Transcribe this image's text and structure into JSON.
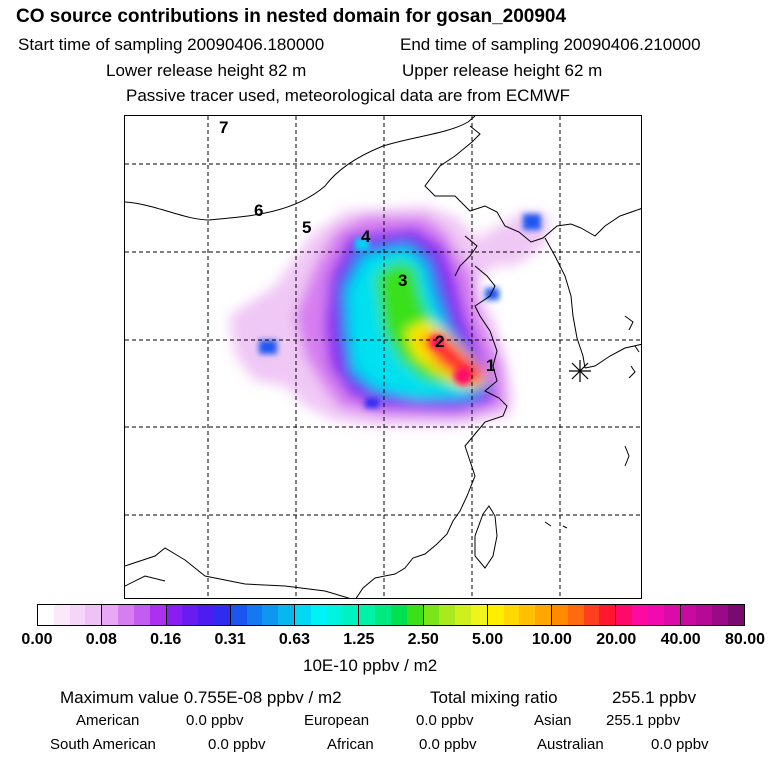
{
  "header": {
    "title": "CO  source contributions in nested domain for gosan_200904",
    "start_label": "Start time of sampling 20090406.180000",
    "end_label": "End time of sampling 20090406.210000",
    "lower_label": "Lower release height   82 m",
    "upper_label": "Upper release height   62 m",
    "tracer_label": "Passive tracer used, meteorological data are from ECMWF"
  },
  "map": {
    "day_labels": [
      "7",
      "6",
      "5",
      "4",
      "3",
      "2",
      "1"
    ],
    "receptor_marker": "asterisk-icon"
  },
  "colorbar": {
    "tick_labels": [
      "0.00",
      "0.08",
      "0.16",
      "0.31",
      "0.63",
      "1.25",
      "2.50",
      "5.00",
      "10.00",
      "20.00",
      "40.00",
      "80.00"
    ],
    "segment_colors": [
      "#ffffff",
      "#fbe9fb",
      "#f6d6f8",
      "#efc2f5",
      "#e9a8f3",
      "#d67ef0",
      "#c35cf0",
      "#ad2ff0",
      "#8a1ef0",
      "#6a1cf0",
      "#4c1cf0",
      "#2f2cf0",
      "#1c56f0",
      "#1478f0",
      "#0e96f0",
      "#08b6f0",
      "#00d8f4",
      "#00f2f6",
      "#00f2e0",
      "#00f2c2",
      "#00f2a6",
      "#00ea82",
      "#00e050",
      "#3ae01a",
      "#7ce51a",
      "#a8ea1c",
      "#cff01c",
      "#eef41c",
      "#ffee00",
      "#ffd800",
      "#ffc000",
      "#ffa600",
      "#ff8a00",
      "#ff6a10",
      "#ff4020",
      "#ff1830",
      "#ff0a68",
      "#ff0aa0",
      "#f00ab0",
      "#dc0aa8",
      "#c80aa0",
      "#b40a96",
      "#9a0a88",
      "#780a70"
    ],
    "unit_label": "10E-10 ppbv / m2"
  },
  "stats": {
    "maximum_label": "Maximum value  0.755E-08 ppbv / m2",
    "total_label": "Total mixing ratio",
    "total_value": "255.1 ppbv",
    "regions": [
      {
        "name": "American",
        "value": "0.0 ppbv"
      },
      {
        "name": "European",
        "value": "0.0 ppbv"
      },
      {
        "name": "Asian",
        "value": "255.1 ppbv"
      },
      {
        "name": "South American",
        "value": "0.0 ppbv"
      },
      {
        "name": "African",
        "value": "0.0 ppbv"
      },
      {
        "name": "Australian",
        "value": "0.0 ppbv"
      }
    ]
  }
}
